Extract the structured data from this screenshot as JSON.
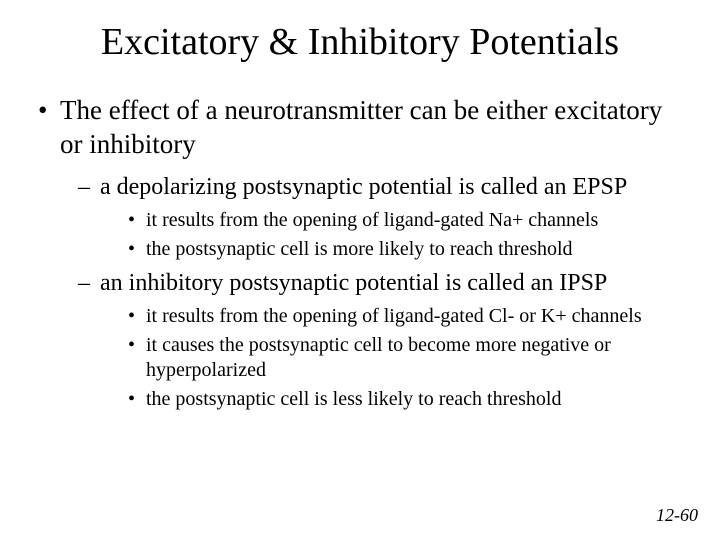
{
  "title": "Excitatory & Inhibitory Potentials",
  "bullets": {
    "main": "The effect of a neurotransmitter can be either excitatory or inhibitory",
    "sub1": {
      "text": "a depolarizing postsynaptic potential is called an EPSP",
      "pts": [
        "it results from the opening of ligand-gated Na+ channels",
        "the postsynaptic cell is more likely to reach threshold"
      ]
    },
    "sub2": {
      "text": "an inhibitory postsynaptic potential is called an IPSP",
      "pts": [
        "it results from the opening of ligand-gated Cl- or K+ channels",
        "it causes the postsynaptic cell to become more negative or hyperpolarized",
        "the postsynaptic cell is less likely to reach threshold"
      ]
    }
  },
  "page_number": "12-60",
  "colors": {
    "background": "#ffffff",
    "text": "#000000"
  },
  "typography": {
    "family": "Times New Roman",
    "title_size_pt": 38,
    "level1_size_pt": 27,
    "level2_size_pt": 24,
    "level3_size_pt": 20,
    "page_number_size_pt": 18
  }
}
